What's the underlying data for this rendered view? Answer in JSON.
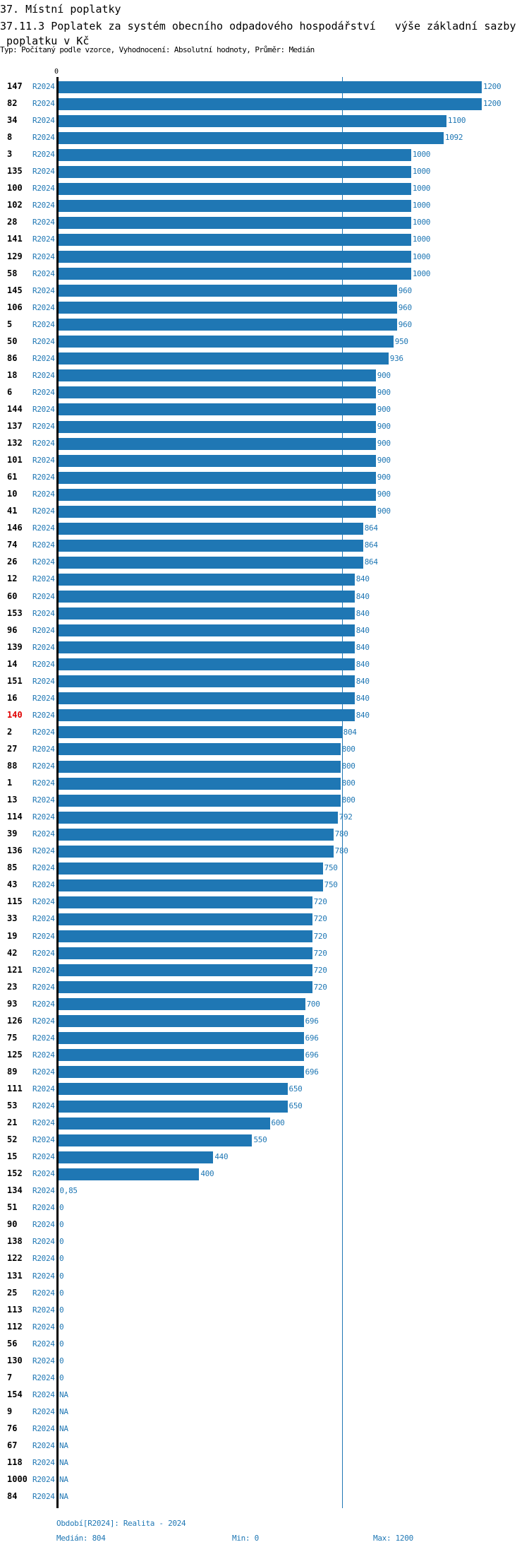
{
  "header": {
    "section": "37. Místní poplatky",
    "title_line1": "37.11.3 Poplatek za systém obecního odpadového hospodářství   výše základní sazby",
    "title_line2": " poplatku v Kč",
    "subtitle": "Typ: Počítaný podle vzorce, Vyhodnocení: Absolutní hodnoty, Průměr: Medián"
  },
  "chart_data": {
    "type": "bar",
    "orientation": "horizontal",
    "axis_zero_label": "0",
    "xlim": [
      0,
      1200
    ],
    "median": 804,
    "highlight_color": "#e00000",
    "bar_color": "#1f77b4",
    "rows": [
      {
        "id": "147",
        "period": "R2024",
        "value": 1200,
        "label": "1200"
      },
      {
        "id": "82",
        "period": "R2024",
        "value": 1200,
        "label": "1200"
      },
      {
        "id": "34",
        "period": "R2024",
        "value": 1100,
        "label": "1100"
      },
      {
        "id": "8",
        "period": "R2024",
        "value": 1092,
        "label": "1092"
      },
      {
        "id": "3",
        "period": "R2024",
        "value": 1000,
        "label": "1000"
      },
      {
        "id": "135",
        "period": "R2024",
        "value": 1000,
        "label": "1000"
      },
      {
        "id": "100",
        "period": "R2024",
        "value": 1000,
        "label": "1000"
      },
      {
        "id": "102",
        "period": "R2024",
        "value": 1000,
        "label": "1000"
      },
      {
        "id": "28",
        "period": "R2024",
        "value": 1000,
        "label": "1000"
      },
      {
        "id": "141",
        "period": "R2024",
        "value": 1000,
        "label": "1000"
      },
      {
        "id": "129",
        "period": "R2024",
        "value": 1000,
        "label": "1000"
      },
      {
        "id": "58",
        "period": "R2024",
        "value": 1000,
        "label": "1000"
      },
      {
        "id": "145",
        "period": "R2024",
        "value": 960,
        "label": "960"
      },
      {
        "id": "106",
        "period": "R2024",
        "value": 960,
        "label": "960"
      },
      {
        "id": "5",
        "period": "R2024",
        "value": 960,
        "label": "960"
      },
      {
        "id": "50",
        "period": "R2024",
        "value": 950,
        "label": "950"
      },
      {
        "id": "86",
        "period": "R2024",
        "value": 936,
        "label": "936"
      },
      {
        "id": "18",
        "period": "R2024",
        "value": 900,
        "label": "900"
      },
      {
        "id": "6",
        "period": "R2024",
        "value": 900,
        "label": "900"
      },
      {
        "id": "144",
        "period": "R2024",
        "value": 900,
        "label": "900"
      },
      {
        "id": "137",
        "period": "R2024",
        "value": 900,
        "label": "900"
      },
      {
        "id": "132",
        "period": "R2024",
        "value": 900,
        "label": "900"
      },
      {
        "id": "101",
        "period": "R2024",
        "value": 900,
        "label": "900"
      },
      {
        "id": "61",
        "period": "R2024",
        "value": 900,
        "label": "900"
      },
      {
        "id": "10",
        "period": "R2024",
        "value": 900,
        "label": "900"
      },
      {
        "id": "41",
        "period": "R2024",
        "value": 900,
        "label": "900"
      },
      {
        "id": "146",
        "period": "R2024",
        "value": 864,
        "label": "864"
      },
      {
        "id": "74",
        "period": "R2024",
        "value": 864,
        "label": "864"
      },
      {
        "id": "26",
        "period": "R2024",
        "value": 864,
        "label": "864"
      },
      {
        "id": "12",
        "period": "R2024",
        "value": 840,
        "label": "840"
      },
      {
        "id": "60",
        "period": "R2024",
        "value": 840,
        "label": "840"
      },
      {
        "id": "153",
        "period": "R2024",
        "value": 840,
        "label": "840"
      },
      {
        "id": "96",
        "period": "R2024",
        "value": 840,
        "label": "840"
      },
      {
        "id": "139",
        "period": "R2024",
        "value": 840,
        "label": "840"
      },
      {
        "id": "14",
        "period": "R2024",
        "value": 840,
        "label": "840"
      },
      {
        "id": "151",
        "period": "R2024",
        "value": 840,
        "label": "840"
      },
      {
        "id": "16",
        "period": "R2024",
        "value": 840,
        "label": "840"
      },
      {
        "id": "140",
        "period": "R2024",
        "value": 840,
        "label": "840",
        "highlight": true
      },
      {
        "id": "2",
        "period": "R2024",
        "value": 804,
        "label": "804"
      },
      {
        "id": "27",
        "period": "R2024",
        "value": 800,
        "label": "800"
      },
      {
        "id": "88",
        "period": "R2024",
        "value": 800,
        "label": "800"
      },
      {
        "id": "1",
        "period": "R2024",
        "value": 800,
        "label": "800"
      },
      {
        "id": "13",
        "period": "R2024",
        "value": 800,
        "label": "800"
      },
      {
        "id": "114",
        "period": "R2024",
        "value": 792,
        "label": "792"
      },
      {
        "id": "39",
        "period": "R2024",
        "value": 780,
        "label": "780"
      },
      {
        "id": "136",
        "period": "R2024",
        "value": 780,
        "label": "780"
      },
      {
        "id": "85",
        "period": "R2024",
        "value": 750,
        "label": "750"
      },
      {
        "id": "43",
        "period": "R2024",
        "value": 750,
        "label": "750"
      },
      {
        "id": "115",
        "period": "R2024",
        "value": 720,
        "label": "720"
      },
      {
        "id": "33",
        "period": "R2024",
        "value": 720,
        "label": "720"
      },
      {
        "id": "19",
        "period": "R2024",
        "value": 720,
        "label": "720"
      },
      {
        "id": "42",
        "period": "R2024",
        "value": 720,
        "label": "720"
      },
      {
        "id": "121",
        "period": "R2024",
        "value": 720,
        "label": "720"
      },
      {
        "id": "23",
        "period": "R2024",
        "value": 720,
        "label": "720"
      },
      {
        "id": "93",
        "period": "R2024",
        "value": 700,
        "label": "700"
      },
      {
        "id": "126",
        "period": "R2024",
        "value": 696,
        "label": "696"
      },
      {
        "id": "75",
        "period": "R2024",
        "value": 696,
        "label": "696"
      },
      {
        "id": "125",
        "period": "R2024",
        "value": 696,
        "label": "696"
      },
      {
        "id": "89",
        "period": "R2024",
        "value": 696,
        "label": "696"
      },
      {
        "id": "111",
        "period": "R2024",
        "value": 650,
        "label": "650"
      },
      {
        "id": "53",
        "period": "R2024",
        "value": 650,
        "label": "650"
      },
      {
        "id": "21",
        "period": "R2024",
        "value": 600,
        "label": "600"
      },
      {
        "id": "52",
        "period": "R2024",
        "value": 550,
        "label": "550"
      },
      {
        "id": "15",
        "period": "R2024",
        "value": 440,
        "label": "440"
      },
      {
        "id": "152",
        "period": "R2024",
        "value": 400,
        "label": "400"
      },
      {
        "id": "134",
        "period": "R2024",
        "value": 0.85,
        "label": "0,85"
      },
      {
        "id": "51",
        "period": "R2024",
        "value": 0,
        "label": "0"
      },
      {
        "id": "90",
        "period": "R2024",
        "value": 0,
        "label": "0"
      },
      {
        "id": "138",
        "period": "R2024",
        "value": 0,
        "label": "0"
      },
      {
        "id": "122",
        "period": "R2024",
        "value": 0,
        "label": "0"
      },
      {
        "id": "131",
        "period": "R2024",
        "value": 0,
        "label": "0"
      },
      {
        "id": "25",
        "period": "R2024",
        "value": 0,
        "label": "0"
      },
      {
        "id": "113",
        "period": "R2024",
        "value": 0,
        "label": "0"
      },
      {
        "id": "112",
        "period": "R2024",
        "value": 0,
        "label": "0"
      },
      {
        "id": "56",
        "period": "R2024",
        "value": 0,
        "label": "0"
      },
      {
        "id": "130",
        "period": "R2024",
        "value": 0,
        "label": "0"
      },
      {
        "id": "7",
        "period": "R2024",
        "value": 0,
        "label": "0"
      },
      {
        "id": "154",
        "period": "R2024",
        "value": null,
        "label": "NA"
      },
      {
        "id": "9",
        "period": "R2024",
        "value": null,
        "label": "NA"
      },
      {
        "id": "76",
        "period": "R2024",
        "value": null,
        "label": "NA"
      },
      {
        "id": "67",
        "period": "R2024",
        "value": null,
        "label": "NA"
      },
      {
        "id": "118",
        "period": "R2024",
        "value": null,
        "label": "NA"
      },
      {
        "id": "1000",
        "period": "R2024",
        "value": null,
        "label": "NA"
      },
      {
        "id": "84",
        "period": "R2024",
        "value": null,
        "label": "NA"
      }
    ]
  },
  "footer": {
    "period_legend": "Období[R2024]: Realita - 2024",
    "median": "Medián: 804",
    "min": "Min: 0",
    "max": "Max: 1200"
  }
}
